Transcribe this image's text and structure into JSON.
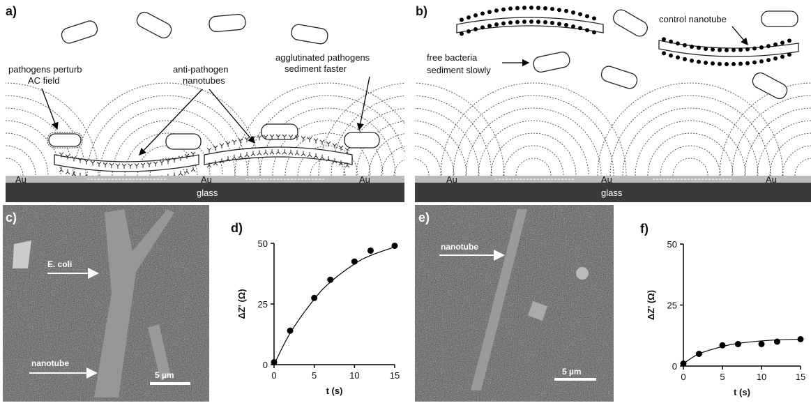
{
  "schematic_a": {
    "label": "a)",
    "note1": [
      "pathogens perturb",
      "AC field"
    ],
    "note2": [
      "anti-pathogen",
      "nanotubes"
    ],
    "note3": [
      "agglutinated pathogens",
      "sediment faster"
    ],
    "electrodes": [
      "Au",
      "Au",
      "Au"
    ],
    "substrate": "glass"
  },
  "schematic_b": {
    "label": "b)",
    "note1": [
      "free bacteria",
      "sediment slowly"
    ],
    "note2": "control nanotube",
    "electrodes": [
      "Au",
      "Au",
      "Au"
    ],
    "substrate": "glass"
  },
  "micrograph_c": {
    "label": "c)",
    "marker1": "E. coli",
    "marker2": "nanotube",
    "scale_bar": "5 µm"
  },
  "micrograph_e": {
    "label": "e)",
    "marker1": "nanotube",
    "scale_bar": "5 µm"
  },
  "chart_data": [
    {
      "type": "scatter",
      "label": "d)",
      "x_label": "t (s)",
      "y_label": "ΔZ' (Ω)",
      "x": [
        0,
        2,
        5,
        7,
        10,
        12,
        15
      ],
      "series": [
        {
          "values": [
            1,
            14,
            27.5,
            35,
            42.5,
            47,
            49
          ],
          "color": "#000000",
          "style": "markers"
        },
        {
          "values": [
            0,
            13,
            27,
            34,
            41.5,
            45,
            48.5
          ],
          "color": "#000000",
          "style": "line"
        }
      ],
      "xlim": [
        0,
        15
      ],
      "xticks": [
        0,
        5,
        10,
        15
      ],
      "ylim": [
        0,
        50
      ],
      "yticks": [
        0,
        25,
        50
      ]
    },
    {
      "type": "scatter",
      "label": "f)",
      "x_label": "t (s)",
      "y_label": "ΔZ' (Ω)",
      "x": [
        0,
        2,
        5,
        7,
        10,
        12,
        15
      ],
      "series": [
        {
          "values": [
            1,
            5,
            8.5,
            9,
            9,
            10,
            11
          ],
          "color": "#000000",
          "style": "markers"
        },
        {
          "values": [
            1,
            5,
            8,
            9.3,
            10.3,
            10.7,
            11
          ],
          "color": "#000000",
          "style": "line"
        }
      ],
      "xlim": [
        0,
        15
      ],
      "xticks": [
        0,
        5,
        10,
        15
      ],
      "ylim": [
        0,
        50
      ],
      "yticks": [
        0,
        25,
        50
      ]
    }
  ]
}
